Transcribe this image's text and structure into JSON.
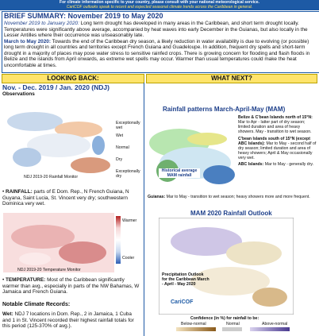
{
  "banner": {
    "line1": "For climate information specific to your country, please consult with your national meteorological service.",
    "line2": "CariCOF outlooks speak to recent and expected seasonal climate trends across the Caribbean in general."
  },
  "summary": {
    "title": "BRIEF SUMMARY: November 2019 to May 2020",
    "paragraphs": [
      {
        "lead": "November 2019 to January 2020:",
        "text": " Long term drought has developed in many areas in the Caribbean, and short term drought locally. Temperatures were significantly above average, accompanied by heat waves into early December in the Guianas, but also locally in the Lesser Antilles where their occurrence was unseasonably late."
      },
      {
        "lead": "March to May 2020:",
        "text": " Towards the end of the Caribbean dry season, a likely reduction in water availability is due to evolving (or possible) long term drought in all countries and territories except French Guiana and Guadeloupe. In addition, frequent dry spells and short-term drought in a majority of places may pose water stress to sensitive rainfed crops. There is growing concern for flooding and flash floods in Belize and the islands from April onwards, as extreme wet spells may occur. Warmer than usual temperatures could make the heat uncomfortable at times."
      }
    ]
  },
  "looking_back": {
    "header": "LOOKING BACK:",
    "title": "Nov. - Dec. 2019 / Jan. 2020 (NDJ)",
    "subtitle": "Observations",
    "rainfall_legend": [
      "Exceptionally wet",
      "Wet",
      "Normal",
      "Dry",
      "Exceptionally dry"
    ],
    "rainfall_caption": "NDJ 2019-20 Rainfall Monitor",
    "rainfall_bullet": {
      "lead": "RAINFALL:",
      "text": " parts of E Dom. Rep., N French Guiana, N Guyana, Saint Lucia, St. Vincent very dry; southwestern Dominica very wet."
    },
    "temperature_caption": "NDJ 2019-20 Temperature Monitor",
    "temperature_legend": [
      "Warmer",
      "Cooler"
    ],
    "temperature_bullet": {
      "lead": "TEMPERATURE:",
      "text": " Most of the Caribbean significantly warmer than avg., especially in parts of the NW Bahamas, W Jamaica and French Guiana."
    },
    "records_title": "Notable Climate Records:",
    "records": [
      {
        "lead": "Wet:",
        "text": " NDJ 7 locations in Dom. Rep., 2 in Jamaica, 1 Cuba and 1 in St. Vincent recorded their highest rainfall totals for this period (125-370% of avg.)."
      }
    ]
  },
  "what_next": {
    "header": "WHAT NEXT?",
    "title": "Rainfall patterns March-April-May (MAM)",
    "notes": [
      {
        "lead": "Belize & C'bean Islands north of 15°N:",
        "text": " Mar to Apr - latter part of dry season; limited duration and area of heavy showers. May - transition to wet season."
      },
      {
        "lead": "C'bean Islands south of 15°N (except ABC Islands):",
        "text": " Mar to May - second half of dry season; limited duration and area of heavy showers; April & May occasionally very wet."
      },
      {
        "lead": "ABC Islands:",
        "text": " Mar to May - generally dry."
      }
    ],
    "map_caption": "Historical average MAM rainfall",
    "guianas": {
      "lead": "Guianas:",
      "text": " Mar to May - transition to wet season; heavy showers more and more frequent."
    },
    "outlook_title": "MAM 2020 Rainfall Outlook",
    "outlook_caption": "Precipitation Outlook for the Caribbean March - April - May 2020",
    "logo": "CariCOF",
    "confidence_title": "Confidence (in %) for rainfall to be:",
    "confidence_labels": [
      "Below-normal",
      "Normal",
      "Above-normal"
    ]
  }
}
